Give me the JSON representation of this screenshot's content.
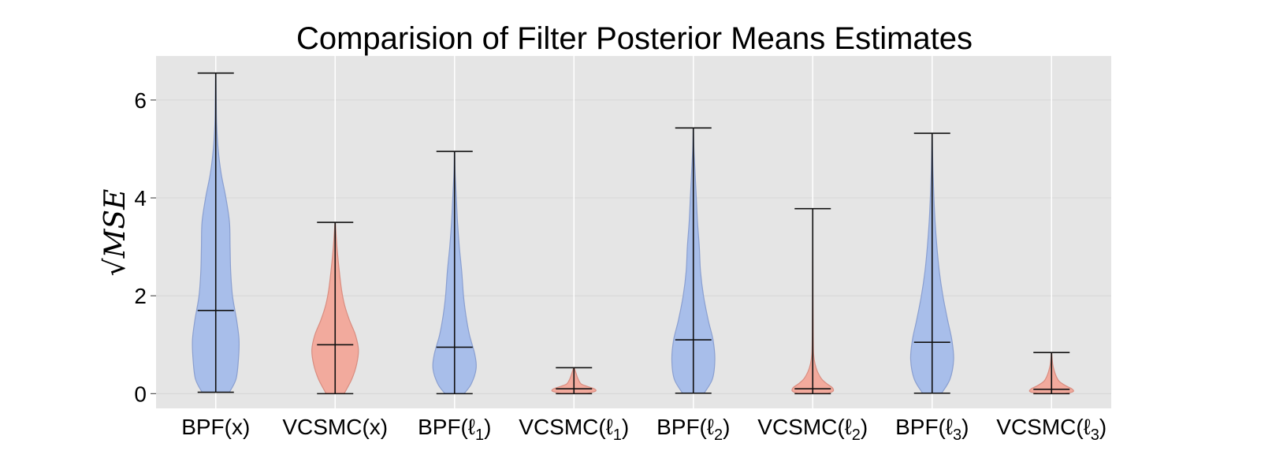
{
  "chart_data": {
    "type": "violin",
    "title": "Comparision of Filter Posterior Means Estimates",
    "ylabel": "√MSE",
    "xlabel": "",
    "ylim": [
      -0.3,
      6.9
    ],
    "yticks": [
      0,
      2,
      4,
      6
    ],
    "grid": true,
    "categories": [
      "BPF(x)",
      "VCSMC(x)",
      "BPF(ℓ1)",
      "VCSMC(ℓ1)",
      "BPF(ℓ2)",
      "VCSMC(ℓ2)",
      "BPF(ℓ3)",
      "VCSMC(ℓ3)"
    ],
    "category_labels": [
      {
        "base": "BPF(x)",
        "sub": ""
      },
      {
        "base": "VCSMC(x)",
        "sub": ""
      },
      {
        "base": "BPF(ℓ",
        "sub": "1",
        "tail": ")"
      },
      {
        "base": "VCSMC(ℓ",
        "sub": "1",
        "tail": ")"
      },
      {
        "base": "BPF(ℓ",
        "sub": "2",
        "tail": ")"
      },
      {
        "base": "VCSMC(ℓ",
        "sub": "2",
        "tail": ")"
      },
      {
        "base": "BPF(ℓ",
        "sub": "3",
        "tail": ")"
      },
      {
        "base": "VCSMC(ℓ",
        "sub": "3",
        "tail": ")"
      }
    ],
    "colors": {
      "BPF": "#a3bbea",
      "VCSMC": "#f3a597",
      "BPF_edge": "#8a9fd0",
      "VCSMC_edge": "#d98d80"
    },
    "series": [
      {
        "name": "BPF(x)",
        "group": "BPF",
        "min": 0.03,
        "max": 6.55,
        "median": 1.7,
        "density": [
          [
            0.03,
            0.23
          ],
          [
            0.3,
            0.34
          ],
          [
            0.7,
            0.38
          ],
          [
            1.1,
            0.39
          ],
          [
            1.5,
            0.35
          ],
          [
            2.0,
            0.28
          ],
          [
            2.5,
            0.25
          ],
          [
            3.0,
            0.24
          ],
          [
            3.5,
            0.23
          ],
          [
            4.0,
            0.17
          ],
          [
            4.5,
            0.09
          ],
          [
            5.0,
            0.04
          ],
          [
            5.5,
            0.015
          ],
          [
            6.0,
            0.008
          ],
          [
            6.55,
            0.003
          ]
        ]
      },
      {
        "name": "VCSMC(x)",
        "group": "VCSMC",
        "min": 0.0,
        "max": 3.5,
        "median": 1.0,
        "density": [
          [
            0.0,
            0.15
          ],
          [
            0.3,
            0.28
          ],
          [
            0.6,
            0.36
          ],
          [
            0.9,
            0.39
          ],
          [
            1.2,
            0.34
          ],
          [
            1.5,
            0.24
          ],
          [
            1.8,
            0.16
          ],
          [
            2.1,
            0.11
          ],
          [
            2.5,
            0.07
          ],
          [
            3.0,
            0.03
          ],
          [
            3.5,
            0.003
          ]
        ]
      },
      {
        "name": "BPF(ℓ1)",
        "group": "BPF",
        "min": 0.0,
        "max": 4.95,
        "median": 0.95,
        "density": [
          [
            0.0,
            0.16
          ],
          [
            0.2,
            0.28
          ],
          [
            0.5,
            0.36
          ],
          [
            0.8,
            0.34
          ],
          [
            1.2,
            0.25
          ],
          [
            1.6,
            0.19
          ],
          [
            2.0,
            0.15
          ],
          [
            2.5,
            0.12
          ],
          [
            3.0,
            0.08
          ],
          [
            3.5,
            0.05
          ],
          [
            4.0,
            0.03
          ],
          [
            4.5,
            0.01
          ],
          [
            4.95,
            0.003
          ]
        ]
      },
      {
        "name": "VCSMC(ℓ1)",
        "group": "VCSMC",
        "min": 0.0,
        "max": 0.53,
        "median": 0.1,
        "density": [
          [
            0.0,
            0.2
          ],
          [
            0.05,
            0.36
          ],
          [
            0.1,
            0.34
          ],
          [
            0.15,
            0.22
          ],
          [
            0.2,
            0.12
          ],
          [
            0.3,
            0.07
          ],
          [
            0.4,
            0.04
          ],
          [
            0.53,
            0.005
          ]
        ]
      },
      {
        "name": "BPF(ℓ2)",
        "group": "BPF",
        "min": 0.01,
        "max": 5.43,
        "median": 1.1,
        "density": [
          [
            0.01,
            0.18
          ],
          [
            0.3,
            0.32
          ],
          [
            0.7,
            0.36
          ],
          [
            1.1,
            0.33
          ],
          [
            1.5,
            0.25
          ],
          [
            2.0,
            0.17
          ],
          [
            2.5,
            0.12
          ],
          [
            3.0,
            0.1
          ],
          [
            3.5,
            0.07
          ],
          [
            4.0,
            0.05
          ],
          [
            4.5,
            0.03
          ],
          [
            5.0,
            0.01
          ],
          [
            5.43,
            0.003
          ]
        ]
      },
      {
        "name": "VCSMC(ℓ2)",
        "group": "VCSMC",
        "min": 0.0,
        "max": 3.78,
        "median": 0.1,
        "density": [
          [
            0.0,
            0.24
          ],
          [
            0.05,
            0.34
          ],
          [
            0.12,
            0.33
          ],
          [
            0.2,
            0.24
          ],
          [
            0.3,
            0.15
          ],
          [
            0.45,
            0.08
          ],
          [
            0.6,
            0.04
          ],
          [
            0.8,
            0.015
          ],
          [
            1.2,
            0.008
          ],
          [
            2.0,
            0.004
          ],
          [
            3.78,
            0.001
          ]
        ]
      },
      {
        "name": "BPF(ℓ3)",
        "group": "BPF",
        "min": 0.01,
        "max": 5.32,
        "median": 1.05,
        "density": [
          [
            0.01,
            0.16
          ],
          [
            0.3,
            0.3
          ],
          [
            0.7,
            0.36
          ],
          [
            1.1,
            0.33
          ],
          [
            1.5,
            0.26
          ],
          [
            2.0,
            0.18
          ],
          [
            2.5,
            0.12
          ],
          [
            3.0,
            0.08
          ],
          [
            3.5,
            0.05
          ],
          [
            4.0,
            0.03
          ],
          [
            4.5,
            0.015
          ],
          [
            5.0,
            0.006
          ],
          [
            5.32,
            0.002
          ]
        ]
      },
      {
        "name": "VCSMC(ℓ3)",
        "group": "VCSMC",
        "min": 0.0,
        "max": 0.84,
        "median": 0.09,
        "density": [
          [
            0.0,
            0.2
          ],
          [
            0.04,
            0.36
          ],
          [
            0.1,
            0.34
          ],
          [
            0.16,
            0.24
          ],
          [
            0.25,
            0.13
          ],
          [
            0.35,
            0.08
          ],
          [
            0.45,
            0.05
          ],
          [
            0.6,
            0.02
          ],
          [
            0.84,
            0.003
          ]
        ]
      }
    ]
  }
}
